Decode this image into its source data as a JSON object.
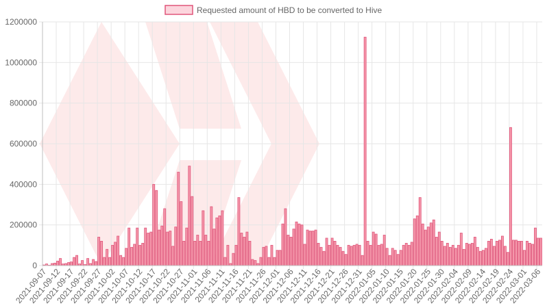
{
  "chart_data": {
    "type": "bar",
    "legend": {
      "label": "Requested amount of HBD to be converted to Hive",
      "position": "top-center"
    },
    "colors": {
      "bar_fill": "#f497aa",
      "bar_stroke": "#e0557a",
      "grid": "#e6e6e6",
      "text": "#666666",
      "watermark": "#fdeaea"
    },
    "watermark": "hive-logo",
    "ylim": [
      0,
      1200000
    ],
    "y_ticks": [
      0,
      200000,
      400000,
      600000,
      800000,
      1000000,
      1200000
    ],
    "x_start": "2021-09-07",
    "x_tick_labels": [
      "2021-09-07",
      "2021-09-12",
      "2021-09-17",
      "2021-09-22",
      "2021-09-27",
      "2021-10-02",
      "2021-10-07",
      "2021-10-12",
      "2021-10-17",
      "2021-10-22",
      "2021-10-27",
      "2021-11-01",
      "2021-11-06",
      "2021-11-11",
      "2021-11-16",
      "2021-11-21",
      "2021-11-26",
      "2021-12-01",
      "2021-12-06",
      "2021-12-11",
      "2021-12-16",
      "2021-12-21",
      "2021-12-26",
      "2021-12-31",
      "2022-01-05",
      "2022-01-10",
      "2022-01-15",
      "2022-01-20",
      "2022-01-25",
      "2022-01-30",
      "2022-02-04",
      "2022-02-09",
      "2022-02-14",
      "2022-02-19",
      "2022-02-24",
      "2022-03-01",
      "2022-03-06"
    ],
    "values": [
      3000,
      8000,
      2000,
      10000,
      12000,
      22000,
      35000,
      8000,
      10000,
      15000,
      18000,
      40000,
      50000,
      8000,
      25000,
      5000,
      35000,
      10000,
      30000,
      20000,
      140000,
      120000,
      40000,
      80000,
      40000,
      100000,
      115000,
      145000,
      50000,
      40000,
      85000,
      185000,
      90000,
      105000,
      185000,
      100000,
      110000,
      185000,
      160000,
      165000,
      400000,
      370000,
      175000,
      195000,
      280000,
      165000,
      170000,
      95000,
      190000,
      460000,
      315000,
      120000,
      185000,
      490000,
      340000,
      120000,
      150000,
      120000,
      270000,
      150000,
      120000,
      290000,
      180000,
      235000,
      245000,
      270000,
      40000,
      100000,
      10000,
      60000,
      100000,
      335000,
      160000,
      140000,
      165000,
      120000,
      30000,
      25000,
      10000,
      40000,
      90000,
      95000,
      40000,
      100000,
      40000,
      75000,
      75000,
      205000,
      280000,
      150000,
      140000,
      180000,
      215000,
      205000,
      200000,
      105000,
      175000,
      170000,
      170000,
      175000,
      110000,
      90000,
      70000,
      135000,
      100000,
      135000,
      120000,
      100000,
      90000,
      70000,
      55000,
      100000,
      95000,
      100000,
      105000,
      100000,
      50000,
      1125000,
      120000,
      100000,
      165000,
      155000,
      100000,
      105000,
      150000,
      85000,
      50000,
      85000,
      75000,
      55000,
      75000,
      100000,
      110000,
      100000,
      115000,
      230000,
      245000,
      335000,
      205000,
      175000,
      190000,
      210000,
      225000,
      140000,
      165000,
      120000,
      95000,
      110000,
      90000,
      100000,
      85000,
      100000,
      160000,
      80000,
      110000,
      105000,
      110000,
      140000,
      90000,
      70000,
      75000,
      85000,
      120000,
      130000,
      95000,
      120000,
      125000,
      145000,
      95000,
      65000,
      680000,
      125000,
      125000,
      120000,
      120000,
      75000,
      120000,
      110000,
      105000,
      185000,
      135000,
      135000
    ]
  }
}
